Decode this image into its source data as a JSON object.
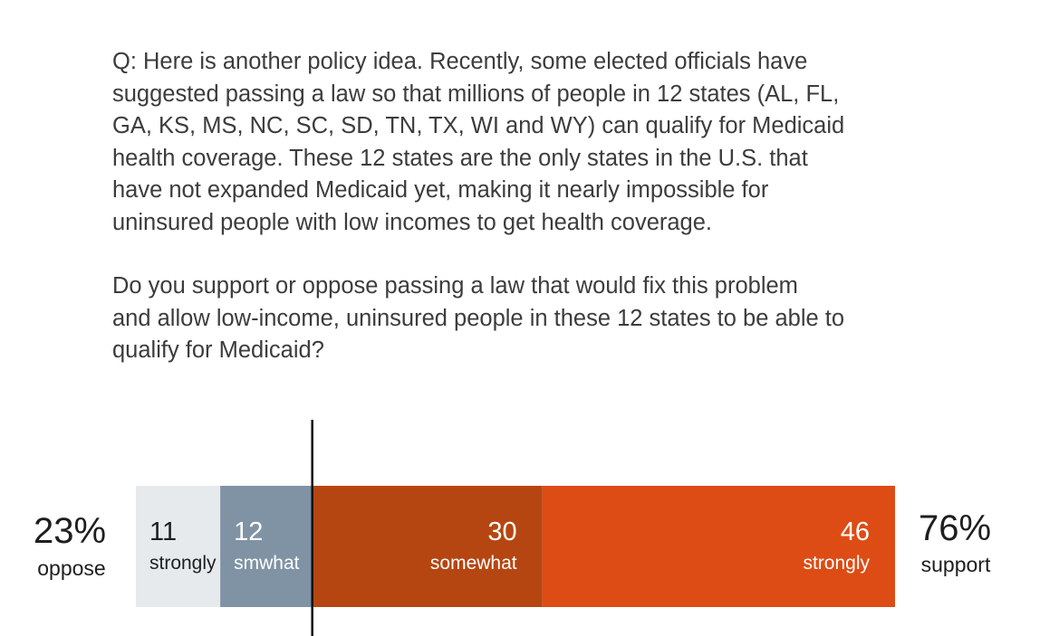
{
  "question": {
    "text": "Q: Here is another policy idea. Recently, some elected officials have\nsuggested passing a law so that millions of people in 12 states (AL, FL,\nGA, KS, MS, NC, SC, SD, TN, TX, WI and WY) can qualify for Medicaid\nhealth coverage. These 12 states are the only states in the U.S. that\nhave not expanded Medicaid yet, making it nearly impossible for\nuninsured people with low incomes to get health coverage.",
    "ask": "Do you support or oppose passing a law that would fix this problem\nand allow low-income, uninsured people in these 12 states to be able to\nqualify for Medicaid?"
  },
  "chart_data": {
    "type": "bar",
    "orientation": "horizontal-stacked",
    "title": "",
    "xlabel": "",
    "ylabel": "",
    "grid": false,
    "legend": "none",
    "oppose_total": {
      "value": "23%",
      "label": "oppose"
    },
    "support_total": {
      "value": "76%",
      "label": "support"
    },
    "segments": [
      {
        "value": 11,
        "label": "strongly",
        "side": "oppose",
        "color": "#e6eaed",
        "text_color": "#1e1e1e"
      },
      {
        "value": 12,
        "label": "smwhat",
        "side": "oppose",
        "color": "#7f93a5",
        "text_color": "#ffffff"
      },
      {
        "value": 30,
        "label": "somewhat",
        "side": "support",
        "color": "#b54612",
        "text_color": "#ffffff"
      },
      {
        "value": 46,
        "label": "strongly",
        "side": "support",
        "color": "#dd4c14",
        "text_color": "#ffffff"
      }
    ]
  }
}
